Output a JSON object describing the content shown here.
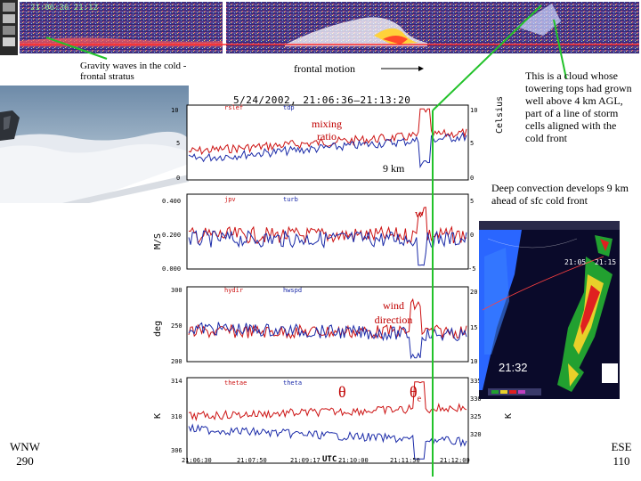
{
  "lidar_strip": {
    "timestamp": "21:06:36 21:12"
  },
  "annotations": {
    "gravity_waves": "Gravity waves in the cold -frontal stratus",
    "frontal_motion": "frontal motion",
    "cloud_tops": "This is a cloud whose towering tops had grown well above 4 km AGL, part of a line of storm cells aligned with the cold front",
    "mixing_ratio": "mixing ratio",
    "nine_km": "9 km",
    "deep_convection": "Deep convection develops 9 km ahead of sfc cold front",
    "w_label": "w",
    "wind_direction": "wind direction",
    "radar_time": "21:32",
    "theta": "θ",
    "theta_e": "θ",
    "theta_e_sub": "e",
    "wnw": "WNW",
    "wnw_deg": "290",
    "ese": "ESE",
    "ese_deg": "110"
  },
  "plot": {
    "title": "5/24/2002, 21:06:36–21:13:20",
    "right_unit": "Celsius",
    "panels": [
      {
        "unit": "",
        "legend_red": "rslef",
        "legend_blue": "tdp",
        "left_ticks": [
          "10",
          "5",
          "0"
        ],
        "right_ticks": [
          "10",
          "5",
          "0"
        ]
      },
      {
        "unit": "M/S",
        "legend_red": "jpv",
        "legend_blue": "turb",
        "left_ticks": [
          "0.400",
          "0.200",
          "0.000"
        ],
        "right_ticks": [
          "5",
          "0",
          "-5"
        ]
      },
      {
        "unit": "deg",
        "legend_red": "hydir",
        "legend_blue": "hwspd",
        "left_ticks": [
          "300",
          "250",
          "200"
        ],
        "right_ticks": [
          "20",
          "15",
          "10"
        ]
      },
      {
        "unit": "K",
        "legend_red": "thetae",
        "legend_blue": "theta",
        "left_ticks": [
          "314",
          "310",
          "306"
        ],
        "right_ticks": [
          "335",
          "330",
          "325",
          "320"
        ],
        "right_unit": "K"
      }
    ],
    "x_ticks": [
      "21:06:30",
      "21:07:50",
      "21:09:17",
      "21:10:00",
      "21:11:50",
      "21:12:00"
    ],
    "x_center": "UTC"
  },
  "radar": {
    "header": "",
    "labels": [
      "21:05",
      "21:15"
    ]
  },
  "colors": {
    "annotation_line": "#22c22a",
    "red_series": "#cc1111",
    "blue_series": "#1a2aa8",
    "radar_bg": "#0a0a2a"
  }
}
